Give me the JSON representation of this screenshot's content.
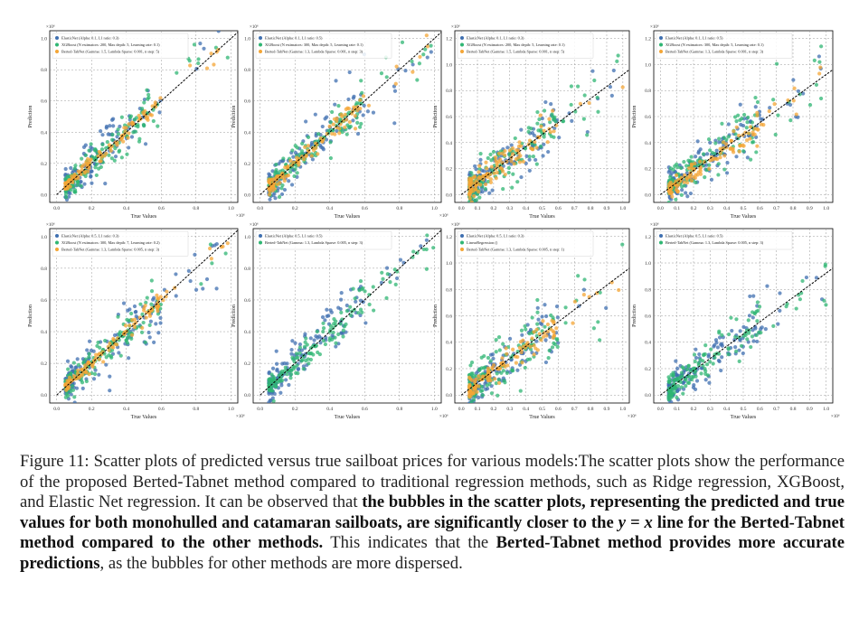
{
  "colors": {
    "elasticnet": "#3f6fb0",
    "xgboost": "#2fb673",
    "berted": "#f4a636",
    "linear": "#e9b347",
    "ideal_line": "#000000",
    "grid": "#999999"
  },
  "chart_data": [
    {
      "type": "scatter",
      "title": "",
      "xlabel": "True Values",
      "ylabel": "Prediction",
      "x_multiplier": "×10⁶",
      "y_multiplier": "×10⁶",
      "xlim": [
        0,
        1.0
      ],
      "ylim": [
        0,
        1.0
      ],
      "xticks": [
        "0.0",
        "0.2",
        "0.4",
        "0.6",
        "0.8",
        "1.0"
      ],
      "yticks": [
        "0.0",
        "0.2",
        "0.4",
        "0.6",
        "0.8",
        "1.0"
      ],
      "grid": true,
      "legend_position": "top-left",
      "series": [
        {
          "name": "ElasticNet (Alpha: 0.1, L1 ratio: 0.3)",
          "color_key": "elasticnet",
          "spread": 0.09,
          "bias": 0.0
        },
        {
          "name": "XGBoost (N estimators: 200, Max depth: 5, Learning rate: 0.1)",
          "color_key": "xgboost",
          "spread": 0.06,
          "bias": 0.0
        },
        {
          "name": "Berted-TabNet (Gamma: 1.5, Lambda Sparse: 0.001, n step: 5)",
          "color_key": "berted",
          "spread": 0.025,
          "bias": 0.0
        }
      ]
    },
    {
      "type": "scatter",
      "title": "",
      "xlabel": "True Values",
      "ylabel": "Prediction",
      "x_multiplier": "×10⁶",
      "y_multiplier": "×10⁶",
      "xlim": [
        0,
        1.0
      ],
      "ylim": [
        0,
        1.0
      ],
      "xticks": [
        "0.0",
        "0.2",
        "0.4",
        "0.6",
        "0.8",
        "1.0"
      ],
      "yticks": [
        "0.0",
        "0.2",
        "0.4",
        "0.6",
        "0.8",
        "1.0"
      ],
      "grid": true,
      "legend_position": "top-left",
      "series": [
        {
          "name": "ElasticNet (Alpha: 0.1, L1 ratio: 0.5)",
          "color_key": "elasticnet",
          "spread": 0.09,
          "bias": 0.0
        },
        {
          "name": "XGBoost (N estimators: 300, Max depth: 5, Learning rate: 0.1)",
          "color_key": "xgboost",
          "spread": 0.06,
          "bias": 0.0
        },
        {
          "name": "Berted-TabNet (Gamma: 1.3, Lambda Sparse: 0.001, n step: 3)",
          "color_key": "berted",
          "spread": 0.035,
          "bias": -0.02
        }
      ]
    },
    {
      "type": "scatter",
      "title": "",
      "xlabel": "True Values",
      "ylabel": "Prediction",
      "x_multiplier": "",
      "y_multiplier": "×10⁶",
      "xlim": [
        0,
        1.0
      ],
      "ylim": [
        0,
        1.3
      ],
      "xticks": [
        "0.0",
        "0.1",
        "0.2",
        "0.3",
        "0.4",
        "0.5",
        "0.6",
        "0.7",
        "0.8",
        "0.9",
        "1.0"
      ],
      "yticks": [
        "0.0",
        "0.2",
        "0.4",
        "0.6",
        "0.8",
        "1.0",
        "1.2"
      ],
      "grid": true,
      "legend_position": "top-left",
      "series": [
        {
          "name": "ElasticNet (Alpha: 0.1, L1 ratio: 0.3)",
          "color_key": "elasticnet",
          "spread": 0.08,
          "bias": 0.0
        },
        {
          "name": "XGBoost (N estimators: 200, Max depth: 5, Learning rate: 0.1)",
          "color_key": "xgboost",
          "spread": 0.09,
          "bias": 0.0
        },
        {
          "name": "Berted-TabNet (Gamma: 1.5, Lambda Sparse: 0.001, n step: 5)",
          "color_key": "berted",
          "spread": 0.05,
          "bias": 0.0
        }
      ]
    },
    {
      "type": "scatter",
      "title": "",
      "xlabel": "True Values",
      "ylabel": "Prediction",
      "x_multiplier": "",
      "y_multiplier": "×10⁶",
      "xlim": [
        0,
        1.0
      ],
      "ylim": [
        0,
        1.3
      ],
      "xticks": [
        "0.0",
        "0.1",
        "0.2",
        "0.3",
        "0.4",
        "0.5",
        "0.6",
        "0.7",
        "0.8",
        "0.9",
        "1.0"
      ],
      "yticks": [
        "0.0",
        "0.2",
        "0.4",
        "0.6",
        "0.8",
        "1.0",
        "1.2"
      ],
      "grid": true,
      "legend_position": "top-left",
      "series": [
        {
          "name": "ElasticNet (Alpha: 0.1, L1 ratio: 0.5)",
          "color_key": "elasticnet",
          "spread": 0.07,
          "bias": 0.0
        },
        {
          "name": "XGBoost (N estimators: 300, Max depth: 5, Learning rate: 0.1)",
          "color_key": "xgboost",
          "spread": 0.08,
          "bias": 0.0
        },
        {
          "name": "Berted-TabNet (Gamma: 1.3, Lambda Sparse: 0.001, n step: 3)",
          "color_key": "berted",
          "spread": 0.04,
          "bias": -0.05
        }
      ]
    },
    {
      "type": "scatter",
      "title": "",
      "xlabel": "True Values",
      "ylabel": "Prediction",
      "x_multiplier": "×10⁶",
      "y_multiplier": "×10⁶",
      "xlim": [
        0,
        1.0
      ],
      "ylim": [
        0,
        1.0
      ],
      "xticks": [
        "0.0",
        "0.2",
        "0.4",
        "0.6",
        "0.8",
        "1.0"
      ],
      "yticks": [
        "0.0",
        "0.2",
        "0.4",
        "0.6",
        "0.8",
        "1.0"
      ],
      "grid": true,
      "legend_position": "top-left",
      "series": [
        {
          "name": "ElasticNet (Alpha: 0.5, L1 ratio: 0.3)",
          "color_key": "elasticnet",
          "spread": 0.09,
          "bias": 0.0
        },
        {
          "name": "XGBoost (N estimators: 300, Max depth: 7, Learning rate: 0.2)",
          "color_key": "xgboost",
          "spread": 0.06,
          "bias": 0.0
        },
        {
          "name": "Berted-TabNet (Gamma: 1.3, Lambda Sparse: 0.005, n step: 3)",
          "color_key": "berted",
          "spread": 0.025,
          "bias": 0.0
        }
      ]
    },
    {
      "type": "scatter",
      "title": "",
      "xlabel": "True Values",
      "ylabel": "Prediction",
      "x_multiplier": "×10⁶",
      "y_multiplier": "×10⁶",
      "xlim": [
        0,
        1.0
      ],
      "ylim": [
        0,
        1.0
      ],
      "xticks": [
        "0.0",
        "0.2",
        "0.4",
        "0.6",
        "0.8",
        "1.0"
      ],
      "yticks": [
        "0.0",
        "0.2",
        "0.4",
        "0.6",
        "0.8",
        "1.0"
      ],
      "grid": true,
      "legend_position": "top-left",
      "series": [
        {
          "name": "ElasticNet (Alpha: 0.5, L1 ratio: 0.5)",
          "color_key": "elasticnet",
          "spread": 0.08,
          "bias": 0.0
        },
        {
          "name": "Berted-TabNet (Gamma: 1.3, Lambda Sparse: 0.005, n step: 3)",
          "color_key": "xgboost",
          "spread": 0.05,
          "bias": 0.0
        }
      ]
    },
    {
      "type": "scatter",
      "title": "",
      "xlabel": "True Values",
      "ylabel": "Prediction",
      "x_multiplier": "×10⁶",
      "y_multiplier": "×10⁶",
      "xlim": [
        0,
        1.0
      ],
      "ylim": [
        0,
        1.3
      ],
      "xticks": [
        "0.0",
        "0.1",
        "0.2",
        "0.3",
        "0.4",
        "0.5",
        "0.6",
        "0.7",
        "0.8",
        "0.9",
        "1.0"
      ],
      "yticks": [
        "0.0",
        "0.2",
        "0.4",
        "0.6",
        "0.8",
        "1.0",
        "1.2"
      ],
      "grid": true,
      "legend_position": "top-left",
      "series": [
        {
          "name": "ElasticNet (Alpha: 0.5, L1 ratio: 0.3)",
          "color_key": "elasticnet",
          "spread": 0.08,
          "bias": 0.0
        },
        {
          "name": "LinearRegression ()",
          "color_key": "xgboost",
          "spread": 0.09,
          "bias": 0.0
        },
        {
          "name": "Berted-TabNet (Gamma: 1.3, Lambda Sparse: 0.005, n step: 1)",
          "color_key": "berted",
          "spread": 0.04,
          "bias": 0.0
        }
      ]
    },
    {
      "type": "scatter",
      "title": "",
      "xlabel": "True Values",
      "ylabel": "Prediction",
      "x_multiplier": "×10⁶",
      "y_multiplier": "×10⁶",
      "xlim": [
        0,
        1.0
      ],
      "ylim": [
        0,
        1.3
      ],
      "xticks": [
        "0.0",
        "0.1",
        "0.2",
        "0.3",
        "0.4",
        "0.5",
        "0.6",
        "0.7",
        "0.8",
        "0.9",
        "1.0"
      ],
      "yticks": [
        "0.0",
        "0.2",
        "0.4",
        "0.6",
        "0.8",
        "1.0",
        "1.2"
      ],
      "grid": true,
      "legend_position": "top-left",
      "series": [
        {
          "name": "ElasticNet (Alpha: 0.5, L1 ratio: 0.5)",
          "color_key": "elasticnet",
          "spread": 0.08,
          "bias": 0.0
        },
        {
          "name": "Berted-TabNet (Gamma: 1.3, Lambda Sparse: 0.005, n step: 3)",
          "color_key": "xgboost",
          "spread": 0.06,
          "bias": 0.0
        }
      ]
    }
  ],
  "caption": {
    "label": "Figure 11:",
    "text_1": "Scatter plots of predicted versus true sailboat prices for various models:The scatter plots show the performance of the proposed Berted-Tabnet method compared to traditional regression methods, such as Ridge regression, XGBoost, and Elastic Net regression. It can be observed that",
    "bold_1": "the bubbles in the scatter plots, representing the predicted and true values for both monohulled and catamaran sailboats, are significantly closer to the",
    "math": "y = x",
    "bold_2": "line for the Berted-Tabnet method compared to the other methods.",
    "text_2": "This indicates that the",
    "bold_3": "Berted-Tabnet method provides more accurate predictions",
    "text_3": ", as the bubbles for other methods are more dispersed."
  }
}
